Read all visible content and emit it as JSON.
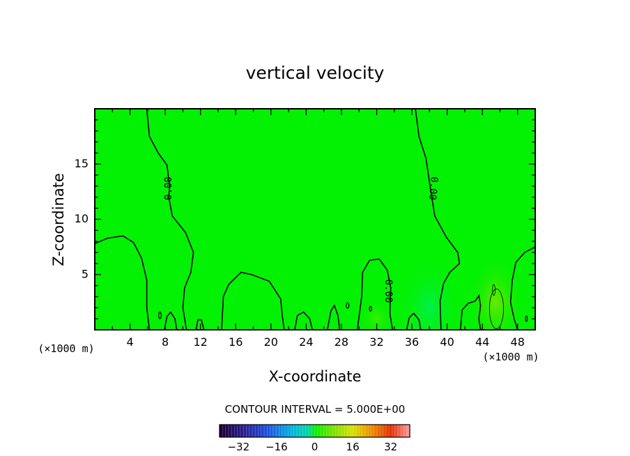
{
  "chart_data": {
    "type": "heatmap",
    "title": "vertical velocity",
    "xlabel": "X-coordinate",
    "ylabel": "Z-coordinate",
    "x_unit_left": "(×1000 m)",
    "x_unit_right": "(×1000 m)",
    "xlim": [
      0,
      50
    ],
    "ylim": [
      0,
      20
    ],
    "x_ticks": [
      4,
      8,
      12,
      16,
      20,
      24,
      28,
      32,
      36,
      40,
      44,
      48
    ],
    "y_ticks": [
      5,
      10,
      15
    ],
    "background_value": 0,
    "contour_label": "0.00",
    "contour_interval_text": "CONTOUR INTERVAL = 5.000E+00",
    "colorbar": {
      "range": [
        -40,
        40
      ],
      "tick_values": [
        -32,
        -16,
        0,
        16,
        32
      ],
      "tick_labels": [
        "−32",
        "−16",
        "0",
        "16",
        "32"
      ]
    },
    "features": [
      {
        "name": "updraft-right",
        "x": 45.5,
        "z": 2.5,
        "value": 5
      },
      {
        "name": "weak-downdraft",
        "x": 38,
        "z": 2,
        "value": -2
      },
      {
        "name": "weak-updraft",
        "x": 32,
        "z": 1,
        "value": 2
      }
    ]
  },
  "colors": {
    "field": "#03f103",
    "contour": "#000000",
    "frame": "#000000"
  }
}
